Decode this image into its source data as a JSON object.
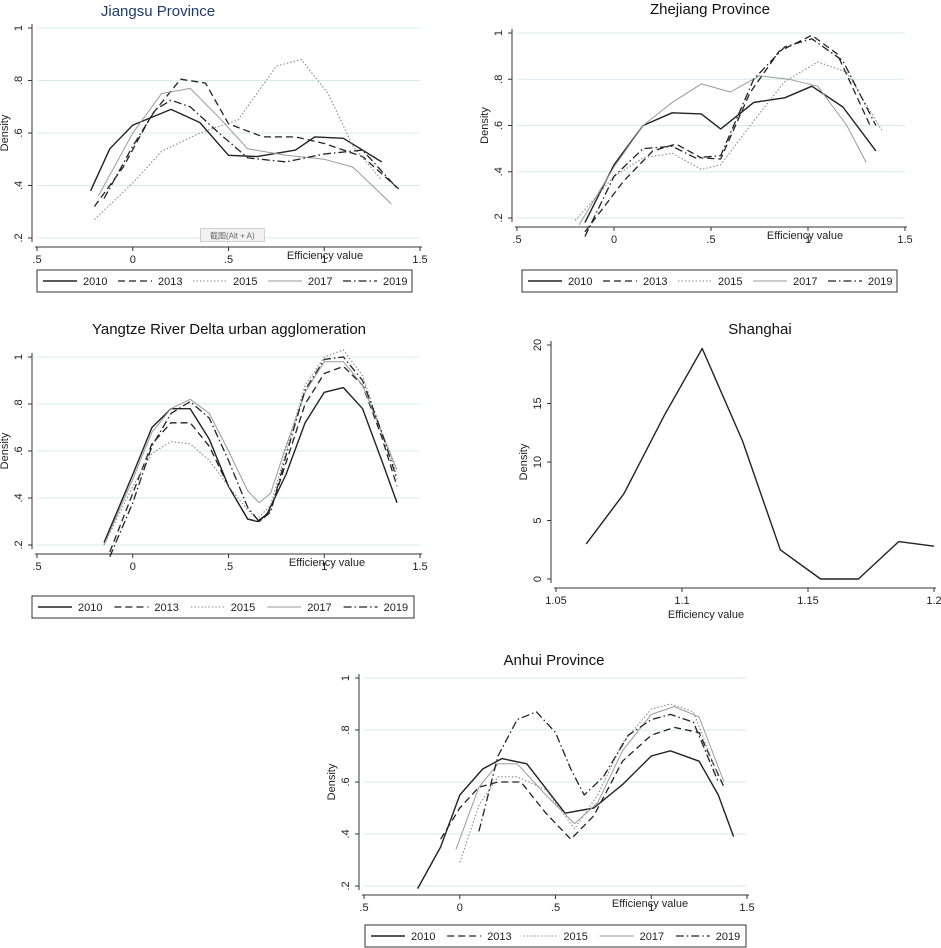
{
  "chart_data": [
    {
      "id": "jiangsu",
      "type": "line",
      "title": "Jiangsu Province",
      "title_color": "#1f3a6e",
      "xlabel": "Efficiency value",
      "ylabel": "Density",
      "xlim": [
        -0.5,
        1.5
      ],
      "ylim": [
        0.2,
        1.0
      ],
      "x_ticks": [
        -0.5,
        0,
        0.5,
        1,
        1.5
      ],
      "x_tick_labels": [
        ".5",
        "0",
        ".5",
        "1",
        "1.5"
      ],
      "y_ticks": [
        0.2,
        0.4,
        0.6,
        0.8,
        1.0
      ],
      "y_tick_labels": [
        ".2",
        ".4",
        ".6",
        ".8",
        "1"
      ],
      "grid": true,
      "legend": [
        "2010",
        "2013",
        "2015",
        "2017",
        "2019"
      ],
      "overlay_text": "截图(Alt + A)",
      "series": [
        {
          "name": "2010",
          "x": [
            -0.22,
            -0.12,
            0.0,
            0.2,
            0.35,
            0.5,
            0.65,
            0.85,
            0.95,
            1.1,
            1.3
          ],
          "y": [
            0.38,
            0.54,
            0.63,
            0.69,
            0.64,
            0.515,
            0.51,
            0.535,
            0.585,
            0.58,
            0.49
          ]
        },
        {
          "name": "2013",
          "x": [
            -0.2,
            -0.05,
            0.1,
            0.25,
            0.38,
            0.5,
            0.68,
            0.85,
            1.0,
            1.2,
            1.4
          ],
          "y": [
            0.32,
            0.47,
            0.67,
            0.805,
            0.79,
            0.635,
            0.585,
            0.585,
            0.56,
            0.51,
            0.38
          ]
        },
        {
          "name": "2015",
          "x": [
            -0.2,
            0.0,
            0.15,
            0.35,
            0.55,
            0.75,
            0.88,
            1.02,
            1.15,
            1.3
          ],
          "y": [
            0.27,
            0.41,
            0.53,
            0.6,
            0.65,
            0.855,
            0.88,
            0.75,
            0.55,
            0.42
          ]
        },
        {
          "name": "2017",
          "x": [
            -0.18,
            0.0,
            0.15,
            0.3,
            0.45,
            0.6,
            0.8,
            1.0,
            1.15,
            1.35
          ],
          "y": [
            0.36,
            0.6,
            0.75,
            0.77,
            0.66,
            0.54,
            0.515,
            0.5,
            0.47,
            0.33
          ]
        },
        {
          "name": "2019",
          "x": [
            -0.15,
            0.0,
            0.12,
            0.2,
            0.3,
            0.45,
            0.6,
            0.8,
            1.0,
            1.2,
            1.38
          ],
          "y": [
            0.35,
            0.55,
            0.69,
            0.725,
            0.7,
            0.6,
            0.505,
            0.49,
            0.52,
            0.535,
            0.39
          ]
        }
      ]
    },
    {
      "id": "zhejiang",
      "type": "line",
      "title": "Zhejiang Province",
      "xlabel": "Efficiency value",
      "ylabel": "Density",
      "xlim": [
        -0.5,
        1.5
      ],
      "ylim": [
        0.2,
        1.0
      ],
      "x_ticks": [
        -0.5,
        0,
        0.5,
        1,
        1.5
      ],
      "x_tick_labels": [
        ".5",
        "0",
        ".5",
        "1",
        "1.5"
      ],
      "y_ticks": [
        0.2,
        0.4,
        0.6,
        0.8,
        1.0
      ],
      "y_tick_labels": [
        ".2",
        ".4",
        ".6",
        ".8",
        "1"
      ],
      "grid": true,
      "legend": [
        "2010",
        "2013",
        "2015",
        "2017",
        "2019"
      ],
      "series": [
        {
          "name": "2010",
          "x": [
            -0.15,
            0.0,
            0.15,
            0.3,
            0.45,
            0.55,
            0.72,
            0.88,
            1.02,
            1.18,
            1.35
          ],
          "y": [
            0.18,
            0.43,
            0.6,
            0.655,
            0.65,
            0.585,
            0.7,
            0.72,
            0.77,
            0.68,
            0.49
          ]
        },
        {
          "name": "2013",
          "x": [
            -0.15,
            0.05,
            0.2,
            0.32,
            0.45,
            0.55,
            0.7,
            0.85,
            1.02,
            1.15,
            1.32
          ],
          "y": [
            0.14,
            0.36,
            0.49,
            0.52,
            0.46,
            0.455,
            0.74,
            0.92,
            0.99,
            0.91,
            0.6
          ]
        },
        {
          "name": "2015",
          "x": [
            -0.2,
            0.0,
            0.15,
            0.3,
            0.45,
            0.55,
            0.72,
            0.88,
            1.05,
            1.2,
            1.38
          ],
          "y": [
            0.19,
            0.38,
            0.46,
            0.48,
            0.41,
            0.43,
            0.62,
            0.79,
            0.875,
            0.83,
            0.58
          ]
        },
        {
          "name": "2017",
          "x": [
            -0.18,
            0.0,
            0.15,
            0.3,
            0.45,
            0.6,
            0.75,
            0.9,
            1.05,
            1.2,
            1.3
          ],
          "y": [
            0.17,
            0.42,
            0.6,
            0.7,
            0.78,
            0.745,
            0.815,
            0.8,
            0.77,
            0.6,
            0.44
          ]
        },
        {
          "name": "2019",
          "x": [
            -0.15,
            0.0,
            0.15,
            0.3,
            0.42,
            0.55,
            0.72,
            0.88,
            1.02,
            1.18,
            1.35
          ],
          "y": [
            0.12,
            0.38,
            0.5,
            0.51,
            0.46,
            0.47,
            0.8,
            0.94,
            0.975,
            0.88,
            0.6
          ]
        }
      ]
    },
    {
      "id": "yrd",
      "type": "line",
      "title": "Yangtze River Delta urban agglomeration",
      "xlabel": "Efficiency value",
      "ylabel": "Density",
      "xlim": [
        -0.5,
        1.5
      ],
      "ylim": [
        0.2,
        1.0
      ],
      "x_ticks": [
        -0.5,
        0,
        0.5,
        1,
        1.5
      ],
      "x_tick_labels": [
        ".5",
        "0",
        ".5",
        "1",
        "1.5"
      ],
      "y_ticks": [
        0.2,
        0.4,
        0.6,
        0.8,
        1.0
      ],
      "y_tick_labels": [
        ".2",
        ".4",
        ".6",
        ".8",
        "1"
      ],
      "grid": true,
      "legend": [
        "2010",
        "2013",
        "2015",
        "2017",
        "2019"
      ],
      "series": [
        {
          "name": "2010",
          "x": [
            -0.15,
            0.0,
            0.1,
            0.2,
            0.3,
            0.4,
            0.5,
            0.6,
            0.65,
            0.7,
            0.8,
            0.9,
            1.0,
            1.1,
            1.2,
            1.3,
            1.38
          ],
          "y": [
            0.21,
            0.5,
            0.7,
            0.78,
            0.78,
            0.65,
            0.45,
            0.31,
            0.3,
            0.33,
            0.5,
            0.72,
            0.85,
            0.87,
            0.78,
            0.56,
            0.38
          ]
        },
        {
          "name": "2013",
          "x": [
            -0.12,
            0.0,
            0.1,
            0.2,
            0.3,
            0.4,
            0.5,
            0.6,
            0.66,
            0.72,
            0.8,
            0.9,
            1.0,
            1.1,
            1.2,
            1.3,
            1.38
          ],
          "y": [
            0.17,
            0.42,
            0.63,
            0.72,
            0.72,
            0.62,
            0.45,
            0.31,
            0.3,
            0.35,
            0.55,
            0.8,
            0.93,
            0.96,
            0.88,
            0.66,
            0.45
          ]
        },
        {
          "name": "2015",
          "x": [
            -0.15,
            0.0,
            0.1,
            0.2,
            0.3,
            0.4,
            0.5,
            0.6,
            0.65,
            0.72,
            0.8,
            0.9,
            1.0,
            1.1,
            1.2,
            1.3,
            1.38
          ],
          "y": [
            0.2,
            0.45,
            0.59,
            0.64,
            0.63,
            0.56,
            0.45,
            0.35,
            0.31,
            0.37,
            0.6,
            0.88,
            1.0,
            1.03,
            0.92,
            0.68,
            0.5
          ]
        },
        {
          "name": "2017",
          "x": [
            -0.15,
            0.0,
            0.1,
            0.2,
            0.3,
            0.4,
            0.5,
            0.6,
            0.66,
            0.72,
            0.8,
            0.9,
            1.0,
            1.1,
            1.2,
            1.3,
            1.38
          ],
          "y": [
            0.2,
            0.48,
            0.68,
            0.78,
            0.82,
            0.76,
            0.6,
            0.43,
            0.38,
            0.42,
            0.62,
            0.85,
            0.98,
            0.98,
            0.88,
            0.68,
            0.52
          ]
        },
        {
          "name": "2019",
          "x": [
            -0.12,
            0.0,
            0.1,
            0.2,
            0.3,
            0.4,
            0.5,
            0.6,
            0.66,
            0.72,
            0.8,
            0.9,
            1.0,
            1.1,
            1.2,
            1.3,
            1.38
          ],
          "y": [
            0.15,
            0.38,
            0.62,
            0.76,
            0.81,
            0.74,
            0.56,
            0.36,
            0.3,
            0.34,
            0.58,
            0.86,
            0.99,
            1.0,
            0.9,
            0.68,
            0.48
          ]
        }
      ]
    },
    {
      "id": "shanghai",
      "type": "line",
      "title": "Shanghai",
      "xlabel": "Efficiency value",
      "ylabel": "Density",
      "xlim": [
        1.05,
        1.2
      ],
      "ylim": [
        0,
        20
      ],
      "x_ticks": [
        1.05,
        1.1,
        1.15,
        1.2
      ],
      "x_tick_labels": [
        "1.05",
        "1.1",
        "1.15",
        "1.2"
      ],
      "y_ticks": [
        0,
        5,
        10,
        15,
        20
      ],
      "y_tick_labels": [
        "0",
        "5",
        "10",
        "15",
        "20"
      ],
      "grid": false,
      "legend": [],
      "series": [
        {
          "name": "Shanghai",
          "x": [
            1.062,
            1.077,
            1.093,
            1.108,
            1.124,
            1.139,
            1.155,
            1.17,
            1.186,
            1.2
          ],
          "y": [
            3.0,
            7.3,
            14.0,
            19.7,
            11.8,
            2.5,
            0.0,
            0.0,
            3.2,
            2.8
          ]
        }
      ]
    },
    {
      "id": "anhui",
      "type": "line",
      "title": "Anhui Province",
      "xlabel": "Efficiency value",
      "ylabel": "Density",
      "xlim": [
        -0.5,
        1.5
      ],
      "ylim": [
        0.2,
        1.0
      ],
      "x_ticks": [
        -0.5,
        0,
        0.5,
        1,
        1.5
      ],
      "x_tick_labels": [
        ".5",
        "0",
        ".5",
        "1",
        "1.5"
      ],
      "y_ticks": [
        0.2,
        0.4,
        0.6,
        0.8,
        1.0
      ],
      "y_tick_labels": [
        ".2",
        ".4",
        ".6",
        ".8",
        "1"
      ],
      "grid": true,
      "legend": [
        "2010",
        "2013",
        "2015",
        "2017",
        "2019"
      ],
      "series": [
        {
          "name": "2010",
          "x": [
            -0.22,
            -0.1,
            0.0,
            0.12,
            0.22,
            0.35,
            0.55,
            0.7,
            0.85,
            1.0,
            1.1,
            1.25,
            1.35,
            1.43
          ],
          "y": [
            0.19,
            0.35,
            0.55,
            0.65,
            0.69,
            0.67,
            0.48,
            0.5,
            0.59,
            0.7,
            0.72,
            0.68,
            0.55,
            0.39
          ]
        },
        {
          "name": "2013",
          "x": [
            -0.1,
            0.0,
            0.1,
            0.2,
            0.32,
            0.45,
            0.58,
            0.7,
            0.85,
            1.0,
            1.12,
            1.25,
            1.38
          ],
          "y": [
            0.38,
            0.5,
            0.58,
            0.6,
            0.6,
            0.48,
            0.38,
            0.47,
            0.68,
            0.78,
            0.81,
            0.79,
            0.58
          ]
        },
        {
          "name": "2015",
          "x": [
            0.0,
            0.1,
            0.2,
            0.3,
            0.45,
            0.6,
            0.72,
            0.85,
            1.0,
            1.1,
            1.22,
            1.35
          ],
          "y": [
            0.29,
            0.51,
            0.62,
            0.62,
            0.57,
            0.42,
            0.55,
            0.75,
            0.88,
            0.9,
            0.87,
            0.62
          ]
        },
        {
          "name": "2017",
          "x": [
            -0.02,
            0.1,
            0.2,
            0.3,
            0.45,
            0.6,
            0.72,
            0.85,
            1.0,
            1.12,
            1.25,
            1.38
          ],
          "y": [
            0.34,
            0.58,
            0.67,
            0.67,
            0.55,
            0.44,
            0.52,
            0.72,
            0.86,
            0.89,
            0.85,
            0.6
          ]
        },
        {
          "name": "2019",
          "x": [
            0.1,
            0.2,
            0.3,
            0.4,
            0.5,
            0.58,
            0.65,
            0.75,
            0.88,
            1.0,
            1.1,
            1.22,
            1.35
          ],
          "y": [
            0.41,
            0.7,
            0.84,
            0.87,
            0.79,
            0.65,
            0.55,
            0.62,
            0.78,
            0.84,
            0.86,
            0.83,
            0.6
          ]
        }
      ]
    }
  ]
}
